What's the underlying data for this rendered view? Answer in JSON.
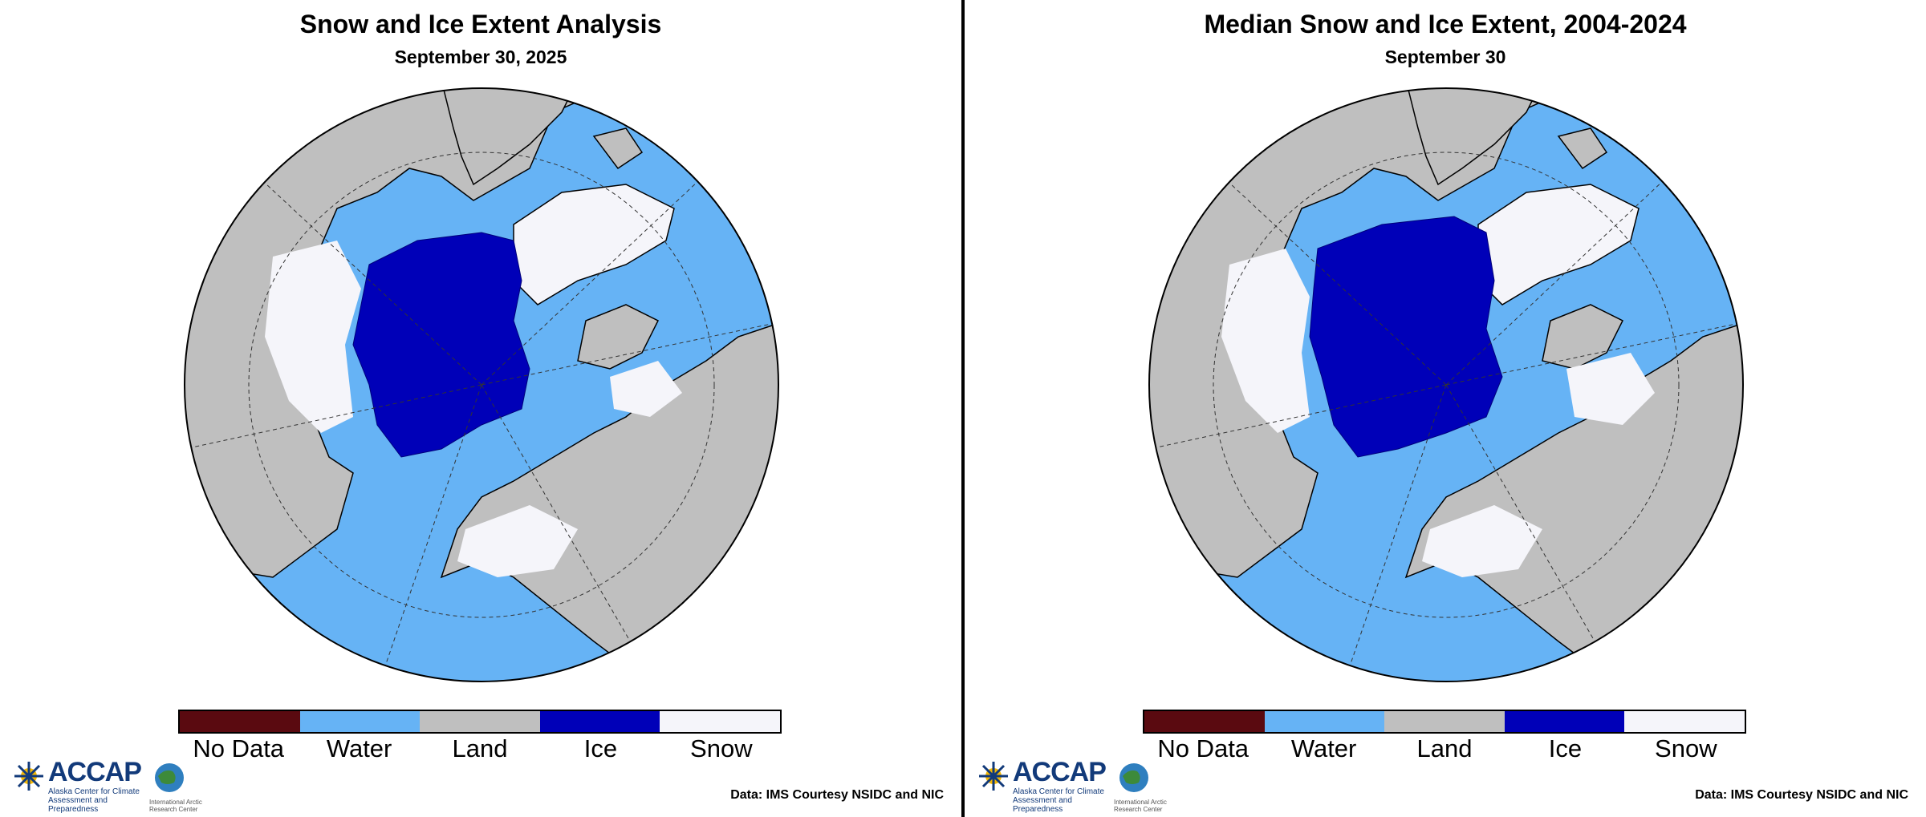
{
  "colors": {
    "no_data": "#5a0a10",
    "water": "#66b3f5",
    "land": "#bfbfbf",
    "ice": "#0000b8",
    "snow": "#f5f5fa"
  },
  "panels": [
    {
      "title": "Snow and Ice Extent Analysis",
      "subtitle": "September 30, 2025",
      "credit": "Data: IMS Courtesy NSIDC and NIC"
    },
    {
      "title": "Median Snow and Ice Extent, 2004-2024",
      "subtitle": "September 30",
      "credit": "Data: IMS Courtesy NSIDC and NIC"
    }
  ],
  "legend": [
    {
      "label": "No Data",
      "color": "#5a0a10"
    },
    {
      "label": "Water",
      "color": "#66b3f5"
    },
    {
      "label": "Land",
      "color": "#bfbfbf"
    },
    {
      "label": "Ice",
      "color": "#0000b8"
    },
    {
      "label": "Snow",
      "color": "#f5f5fa"
    }
  ],
  "logo": {
    "name": "ACCAP",
    "tagline": "Alaska Center for Climate Assessment and Preparedness",
    "partner": "International Arctic Research Center",
    "icons": [
      "accap-snowflake-logo-icon",
      "iarc-globe-logo-icon"
    ]
  }
}
